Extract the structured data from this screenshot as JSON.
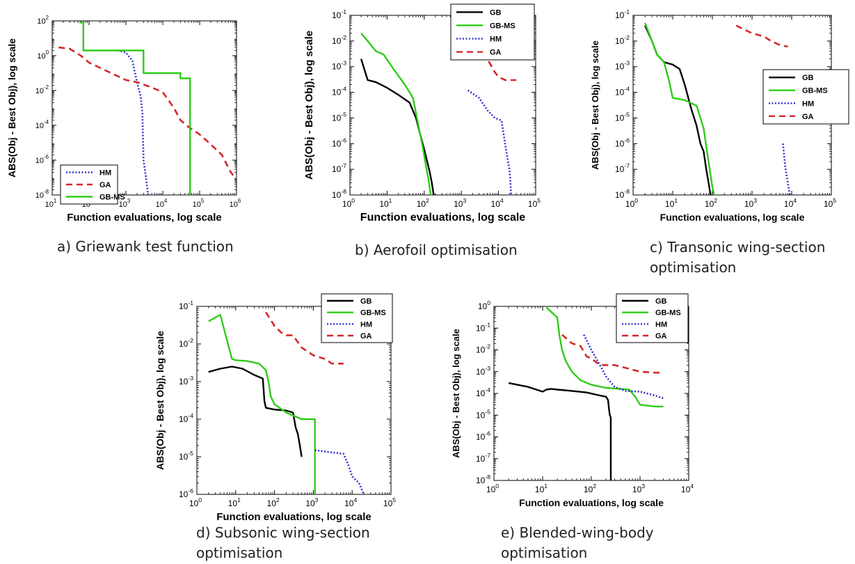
{
  "chart_data": [
    {
      "type": "line",
      "caption": "a) Griewank test function",
      "xlabel": "Function evaluations, log scale",
      "ylabel": "ABS(Obj - Best Obj), log scale",
      "x_scale": "log",
      "y_scale": "log",
      "xlim": [
        10,
        1000000
      ],
      "ylim": [
        1e-08,
        100
      ],
      "x_ticks": [
        {
          "v": 10,
          "label": "10",
          "exp": "1"
        },
        {
          "v": 100,
          "label": "10",
          "exp": "2"
        },
        {
          "v": 1000,
          "label": "10",
          "exp": "3"
        },
        {
          "v": 10000,
          "label": "10",
          "exp": "4"
        },
        {
          "v": 100000,
          "label": "10",
          "exp": "5"
        },
        {
          "v": 1000000,
          "label": "10",
          "exp": "6"
        }
      ],
      "y_ticks": [
        {
          "v": 1e-08,
          "label": "10",
          "exp": "-8"
        },
        {
          "v": 1e-06,
          "label": "10",
          "exp": "-6"
        },
        {
          "v": 0.0001,
          "label": "10",
          "exp": "-4"
        },
        {
          "v": 0.01,
          "label": "10",
          "exp": "-2"
        },
        {
          "v": 1,
          "label": "10",
          "exp": "0"
        },
        {
          "v": 100,
          "label": "10",
          "exp": "2"
        }
      ],
      "legend": "bottom-left",
      "series": [
        {
          "name": "HM",
          "color": "#2f2fd0",
          "dash": "dotted",
          "step": false,
          "x": [
            600,
            1000,
            1500,
            2000,
            2500,
            2800,
            3000,
            3500,
            4000
          ],
          "y": [
            2,
            1.5,
            0.5,
            0.03,
            0.005,
            0.0005,
            1e-06,
            1e-07,
            1e-08
          ]
        },
        {
          "name": "GA",
          "color": "#d62728",
          "dash": "dashed",
          "step": false,
          "x": [
            15,
            30,
            60,
            100,
            200,
            500,
            1000,
            2000,
            5000,
            10000,
            20000,
            30000,
            50000,
            100000,
            200000,
            400000,
            700000,
            1000000
          ],
          "y": [
            3,
            2.5,
            1,
            0.4,
            0.2,
            0.08,
            0.04,
            0.03,
            0.015,
            0.008,
            0.001,
            0.0002,
            8e-05,
            3e-05,
            8e-06,
            2e-06,
            2e-07,
            8e-08
          ]
        },
        {
          "name": "GB-MS",
          "color": "#2ecc17",
          "dash": "solid",
          "step": true,
          "x": [
            55,
            70,
            100,
            500,
            3000,
            30000,
            55000,
            55001
          ],
          "y": [
            80,
            2,
            2,
            2,
            0.1,
            0.05,
            0.05,
            1e-08
          ]
        }
      ]
    },
    {
      "type": "line",
      "caption": "b) Aerofoil optimisation",
      "xlabel": "Function evaluations, log scale",
      "ylabel": "ABS(Obj - Best Obj), log scale",
      "x_scale": "log",
      "y_scale": "log",
      "xlim": [
        1,
        100000
      ],
      "ylim": [
        1e-08,
        0.1
      ],
      "x_ticks": [
        {
          "v": 1,
          "label": "10",
          "exp": "0"
        },
        {
          "v": 10,
          "label": "10",
          "exp": "1"
        },
        {
          "v": 100,
          "label": "10",
          "exp": "2"
        },
        {
          "v": 1000,
          "label": "10",
          "exp": "3"
        },
        {
          "v": 10000,
          "label": "10",
          "exp": "4"
        },
        {
          "v": 100000,
          "label": "10",
          "exp": "5"
        }
      ],
      "y_ticks": [
        {
          "v": 1e-08,
          "label": "10",
          "exp": "-8"
        },
        {
          "v": 1e-07,
          "label": "10",
          "exp": "-7"
        },
        {
          "v": 1e-06,
          "label": "10",
          "exp": "-6"
        },
        {
          "v": 1e-05,
          "label": "10",
          "exp": "-5"
        },
        {
          "v": 0.0001,
          "label": "10",
          "exp": "-4"
        },
        {
          "v": 0.001,
          "label": "10",
          "exp": "-3"
        },
        {
          "v": 0.01,
          "label": "10",
          "exp": "-2"
        },
        {
          "v": 0.1,
          "label": "10",
          "exp": "-1"
        }
      ],
      "legend": "top-right",
      "series": [
        {
          "name": "GB",
          "color": "#000000",
          "dash": "solid",
          "step": false,
          "x": [
            2,
            3,
            5,
            10,
            20,
            40,
            60,
            80,
            100,
            120,
            140,
            160,
            180
          ],
          "y": [
            0.002,
            0.0003,
            0.00025,
            0.00015,
            8e-05,
            4e-05,
            1e-05,
            2e-06,
            6e-07,
            2e-07,
            8e-08,
            3e-08,
            1e-08
          ]
        },
        {
          "name": "GB-MS",
          "color": "#2ecc17",
          "dash": "solid",
          "step": false,
          "x": [
            2,
            3,
            5,
            8,
            15,
            30,
            50,
            70,
            90,
            110,
            130,
            150
          ],
          "y": [
            0.02,
            0.01,
            0.004,
            0.003,
            0.0008,
            0.0002,
            6e-05,
            5e-06,
            8e-07,
            1.5e-07,
            4e-08,
            1e-08
          ]
        },
        {
          "name": "HM",
          "color": "#2f2fd0",
          "dash": "dotted",
          "step": false,
          "x": [
            1500,
            3000,
            5000,
            8000,
            12000,
            15000,
            18000,
            20000,
            22000
          ],
          "y": [
            0.00012,
            6e-05,
            2e-05,
            1e-05,
            8e-06,
            1e-06,
            2e-07,
            8e-08,
            1e-08
          ]
        },
        {
          "name": "GA",
          "color": "#d62728",
          "dash": "dashed",
          "step": false,
          "x": [
            1500,
            3000,
            5000,
            8000,
            10000,
            15000,
            20000,
            30000
          ],
          "y": [
            0.03,
            0.02,
            0.002,
            0.0006,
            0.0004,
            0.0003,
            0.0003,
            0.0003
          ]
        }
      ]
    },
    {
      "type": "line",
      "caption": "c) Transonic wing-section\noptimisation",
      "xlabel": "Function evaluations, log scale",
      "ylabel": "ABS(Obj - Best Obj), log scale",
      "x_scale": "log",
      "y_scale": "log",
      "xlim": [
        1,
        100000
      ],
      "ylim": [
        1e-08,
        0.1
      ],
      "x_ticks": [
        {
          "v": 1,
          "label": "10",
          "exp": "0"
        },
        {
          "v": 10,
          "label": "10",
          "exp": "1"
        },
        {
          "v": 100,
          "label": "10",
          "exp": "2"
        },
        {
          "v": 1000,
          "label": "10",
          "exp": "3"
        },
        {
          "v": 10000,
          "label": "10",
          "exp": "4"
        },
        {
          "v": 100000,
          "label": "10",
          "exp": "5"
        }
      ],
      "y_ticks": [
        {
          "v": 1e-08,
          "label": "10",
          "exp": "-8"
        },
        {
          "v": 1e-07,
          "label": "10",
          "exp": "-7"
        },
        {
          "v": 1e-06,
          "label": "10",
          "exp": "-6"
        },
        {
          "v": 1e-05,
          "label": "10",
          "exp": "-5"
        },
        {
          "v": 0.0001,
          "label": "10",
          "exp": "-4"
        },
        {
          "v": 0.001,
          "label": "10",
          "exp": "-3"
        },
        {
          "v": 0.01,
          "label": "10",
          "exp": "-2"
        },
        {
          "v": 0.1,
          "label": "10",
          "exp": "-1"
        }
      ],
      "legend": "right",
      "series": [
        {
          "name": "GB",
          "color": "#000000",
          "dash": "solid",
          "step": false,
          "x": [
            2,
            3,
            4,
            6,
            10,
            15,
            20,
            30,
            40,
            50,
            60,
            70,
            80,
            90
          ],
          "y": [
            0.04,
            0.01,
            0.003,
            0.0015,
            0.0012,
            0.0008,
            0.0002,
            2e-05,
            5e-06,
            1e-06,
            5e-07,
            1e-07,
            3e-08,
            1e-08
          ]
        },
        {
          "name": "GB-MS",
          "color": "#2ecc17",
          "dash": "solid",
          "step": false,
          "x": [
            2,
            3,
            4,
            6,
            8,
            10,
            20,
            40,
            60,
            80,
            90,
            100,
            110
          ],
          "y": [
            0.05,
            0.01,
            0.003,
            0.0015,
            0.0003,
            6e-05,
            5e-05,
            3e-05,
            4e-06,
            2e-07,
            6e-08,
            2e-08,
            1e-08
          ]
        },
        {
          "name": "HM",
          "color": "#2f2fd0",
          "dash": "dotted",
          "step": false,
          "x": [
            6000,
            7000,
            8000,
            9000
          ],
          "y": [
            1e-06,
            1e-07,
            3e-08,
            1e-08
          ]
        },
        {
          "name": "GA",
          "color": "#d62728",
          "dash": "dashed",
          "step": false,
          "x": [
            400,
            1000,
            2000,
            3000,
            5000,
            8000
          ],
          "y": [
            0.04,
            0.02,
            0.015,
            0.01,
            0.007,
            0.006
          ]
        }
      ]
    },
    {
      "type": "line",
      "caption": "d) Subsonic wing-section\noptimisation",
      "xlabel": "Function evaluations, log scale",
      "ylabel": "ABS(Obj - Best Obj), log scale",
      "x_scale": "log",
      "y_scale": "log",
      "xlim": [
        1,
        100000
      ],
      "ylim": [
        1e-06,
        0.1
      ],
      "x_ticks": [
        {
          "v": 1,
          "label": "10",
          "exp": "0"
        },
        {
          "v": 10,
          "label": "10",
          "exp": "1"
        },
        {
          "v": 100,
          "label": "10",
          "exp": "2"
        },
        {
          "v": 1000,
          "label": "10",
          "exp": "3"
        },
        {
          "v": 10000,
          "label": "10",
          "exp": "4"
        },
        {
          "v": 100000,
          "label": "10",
          "exp": "5"
        }
      ],
      "y_ticks": [
        {
          "v": 1e-06,
          "label": "10",
          "exp": "-6"
        },
        {
          "v": 1e-05,
          "label": "10",
          "exp": "-5"
        },
        {
          "v": 0.0001,
          "label": "10",
          "exp": "-4"
        },
        {
          "v": 0.001,
          "label": "10",
          "exp": "-3"
        },
        {
          "v": 0.01,
          "label": "10",
          "exp": "-2"
        },
        {
          "v": 0.1,
          "label": "10",
          "exp": "-1"
        }
      ],
      "legend": "top-right",
      "series": [
        {
          "name": "GB",
          "color": "#000000",
          "dash": "solid",
          "step": false,
          "x": [
            2,
            4,
            8,
            15,
            30,
            50,
            55,
            60,
            100,
            200,
            300,
            350,
            400,
            450,
            500
          ],
          "y": [
            0.0018,
            0.0022,
            0.0025,
            0.0022,
            0.0015,
            0.0012,
            0.0003,
            0.0002,
            0.00018,
            0.00017,
            0.00015,
            6e-05,
            4e-05,
            2e-05,
            1e-05
          ]
        },
        {
          "name": "GB-MS",
          "color": "#2ecc17",
          "dash": "solid",
          "step": false,
          "x": [
            2,
            4,
            8,
            10,
            20,
            40,
            60,
            70,
            80,
            100,
            200,
            500,
            1000,
            1100,
            1101
          ],
          "y": [
            0.04,
            0.06,
            0.004,
            0.0037,
            0.0035,
            0.003,
            0.002,
            0.001,
            0.0004,
            0.00025,
            0.00015,
            0.0001,
            0.0001,
            0.0001,
            1e-06
          ]
        },
        {
          "name": "HM",
          "color": "#2f2fd0",
          "dash": "dotted",
          "step": false,
          "x": [
            1100,
            3000,
            6000,
            8000,
            10000,
            15000,
            20000
          ],
          "y": [
            1.5e-05,
            1.3e-05,
            1.2e-05,
            6e-06,
            3e-06,
            2e-06,
            1e-06
          ]
        },
        {
          "name": "GA",
          "color": "#d62728",
          "dash": "dashed",
          "step": false,
          "x": [
            60,
            100,
            150,
            200,
            300,
            500,
            1000,
            2000,
            3000,
            6000
          ],
          "y": [
            0.07,
            0.03,
            0.02,
            0.017,
            0.017,
            0.008,
            0.005,
            0.004,
            0.003,
            0.003
          ]
        }
      ]
    },
    {
      "type": "line",
      "caption": "e) Blended-wing-body\noptimisation",
      "xlabel": "Function evaluations, log scale",
      "ylabel": "ABS(Obj - Best Obj), log scale",
      "x_scale": "log",
      "y_scale": "log",
      "xlim": [
        1,
        10000
      ],
      "ylim": [
        1e-08,
        1
      ],
      "x_ticks": [
        {
          "v": 1,
          "label": "10",
          "exp": "0"
        },
        {
          "v": 10,
          "label": "10",
          "exp": "1"
        },
        {
          "v": 100,
          "label": "10",
          "exp": "2"
        },
        {
          "v": 1000,
          "label": "10",
          "exp": "3"
        },
        {
          "v": 10000,
          "label": "10",
          "exp": "4"
        }
      ],
      "y_ticks": [
        {
          "v": 1e-08,
          "label": "10",
          "exp": "-8"
        },
        {
          "v": 1e-07,
          "label": "10",
          "exp": "-7"
        },
        {
          "v": 1e-06,
          "label": "10",
          "exp": "-6"
        },
        {
          "v": 1e-05,
          "label": "10",
          "exp": "-5"
        },
        {
          "v": 0.0001,
          "label": "10",
          "exp": "-4"
        },
        {
          "v": 0.001,
          "label": "10",
          "exp": "-3"
        },
        {
          "v": 0.01,
          "label": "10",
          "exp": "-2"
        },
        {
          "v": 0.1,
          "label": "10",
          "exp": "-1"
        },
        {
          "v": 1,
          "label": "10",
          "exp": "0"
        }
      ],
      "legend": "top-right",
      "series": [
        {
          "name": "GB",
          "color": "#000000",
          "dash": "solid",
          "step": false,
          "x": [
            2,
            5,
            10,
            12,
            15,
            20,
            40,
            80,
            150,
            200,
            220,
            230,
            240,
            250,
            251
          ],
          "y": [
            0.0003,
            0.0002,
            0.00012,
            0.00015,
            0.00016,
            0.00015,
            0.00013,
            0.00011,
            8e-05,
            7e-05,
            5e-05,
            2e-05,
            1e-05,
            8e-06,
            1e-08
          ]
        },
        {
          "name": "GB-MS",
          "color": "#2ecc17",
          "dash": "solid",
          "step": false,
          "x": [
            12,
            20,
            22,
            25,
            30,
            40,
            60,
            100,
            200,
            400,
            600,
            800,
            1000,
            2000,
            3000
          ],
          "y": [
            0.9,
            0.3,
            0.05,
            0.01,
            0.003,
            0.001,
            0.0004,
            0.00025,
            0.00018,
            0.00016,
            0.00015,
            7e-05,
            3e-05,
            2.5e-05,
            2.5e-05
          ]
        },
        {
          "name": "HM",
          "color": "#2f2fd0",
          "dash": "dotted",
          "step": false,
          "x": [
            70,
            100,
            150,
            200,
            300,
            500,
            1000,
            2000,
            3000
          ],
          "y": [
            0.05,
            0.01,
            0.002,
            0.0006,
            0.0002,
            0.00013,
            0.00012,
            8e-05,
            6e-05
          ]
        },
        {
          "name": "GA",
          "color": "#d62728",
          "dash": "dashed",
          "step": false,
          "x": [
            25,
            40,
            60,
            80,
            100,
            150,
            200,
            300,
            500,
            1000,
            2000,
            3000
          ],
          "y": [
            0.05,
            0.02,
            0.015,
            0.005,
            0.004,
            0.002,
            0.002,
            0.002,
            0.0015,
            0.001,
            0.0009,
            0.0009
          ]
        }
      ]
    }
  ]
}
